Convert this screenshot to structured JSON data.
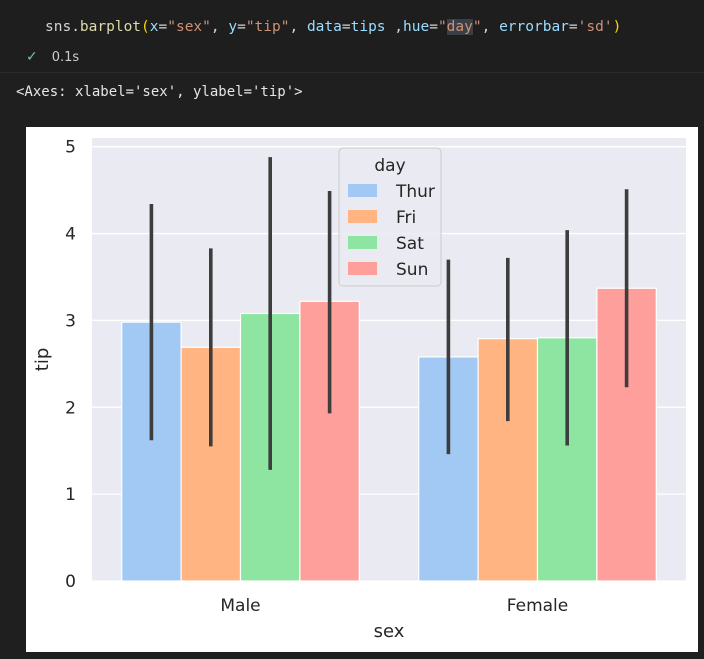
{
  "cell": {
    "code_tokens": [
      {
        "t": "sns.",
        "c": "tk-op"
      },
      {
        "t": "barplot",
        "c": "tk-fn"
      },
      {
        "t": "(",
        "c": "tk-paren"
      },
      {
        "t": "x",
        "c": "tk-param"
      },
      {
        "t": "=",
        "c": "tk-op"
      },
      {
        "t": "\"sex\"",
        "c": "tk-str"
      },
      {
        "t": ", ",
        "c": "tk-op"
      },
      {
        "t": "y",
        "c": "tk-param"
      },
      {
        "t": "=",
        "c": "tk-op"
      },
      {
        "t": "\"tip\"",
        "c": "tk-str"
      },
      {
        "t": ", ",
        "c": "tk-op"
      },
      {
        "t": "data",
        "c": "tk-param"
      },
      {
        "t": "=",
        "c": "tk-op"
      },
      {
        "t": "tips",
        "c": "tk-param"
      },
      {
        "t": " ,",
        "c": "tk-op"
      },
      {
        "t": "hue",
        "c": "tk-param"
      },
      {
        "t": "=",
        "c": "tk-op"
      },
      {
        "t": "\"",
        "c": "tk-str"
      },
      {
        "t": "day",
        "c": "tk-str tk-hl"
      },
      {
        "t": "\"",
        "c": "tk-str"
      },
      {
        "t": ", ",
        "c": "tk-op"
      },
      {
        "t": "errorbar",
        "c": "tk-param"
      },
      {
        "t": "=",
        "c": "tk-op"
      },
      {
        "t": "'sd'",
        "c": "tk-str"
      },
      {
        "t": ")",
        "c": "tk-paren"
      }
    ],
    "status_icon": "check-icon",
    "exec_time": "0.1s",
    "output_text": "<Axes: xlabel='sex', ylabel='tip'>"
  },
  "chart_data": {
    "type": "bar",
    "categories": [
      "Male",
      "Female"
    ],
    "series": [
      {
        "name": "Thur",
        "color": "#a1c9f4",
        "values": [
          2.98,
          2.58
        ],
        "err_low": [
          1.62,
          1.46
        ],
        "err_high": [
          4.34,
          3.7
        ]
      },
      {
        "name": "Fri",
        "color": "#ffb482",
        "values": [
          2.69,
          2.79
        ],
        "err_low": [
          1.55,
          1.84
        ],
        "err_high": [
          3.83,
          3.72
        ]
      },
      {
        "name": "Sat",
        "color": "#8de5a1",
        "values": [
          3.08,
          2.8
        ],
        "err_low": [
          1.28,
          1.56
        ],
        "err_high": [
          4.88,
          4.04
        ]
      },
      {
        "name": "Sun",
        "color": "#ff9f9b",
        "values": [
          3.22,
          3.37
        ],
        "err_low": [
          1.93,
          2.23
        ],
        "err_high": [
          4.49,
          4.51
        ]
      }
    ],
    "xlabel": "sex",
    "ylabel": "tip",
    "ylim": [
      0,
      5.1
    ],
    "yticks": [
      "0",
      "1",
      "2",
      "3",
      "4",
      "5"
    ],
    "legend_title": "day",
    "legend_position": "top-center",
    "grid": true,
    "background_color": "#eaeaf2",
    "errorbar_color": "#3d3d3d"
  }
}
